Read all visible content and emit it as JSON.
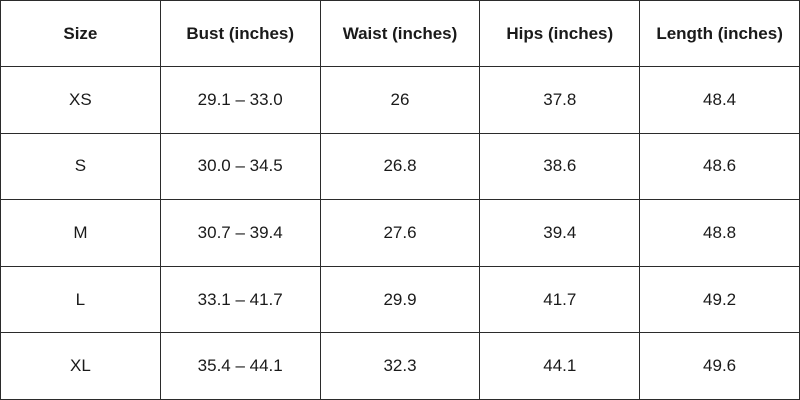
{
  "table": {
    "headers": [
      "Size",
      "Bust (inches)",
      "Waist (inches)",
      "Hips (inches)",
      "Length (inches)"
    ],
    "rows": [
      [
        "XS",
        "29.1 – 33.0",
        "26",
        "37.8",
        "48.4"
      ],
      [
        "S",
        "30.0 – 34.5",
        "26.8",
        "38.6",
        "48.6"
      ],
      [
        "M",
        "30.7 – 39.4",
        "27.6",
        "39.4",
        "48.8"
      ],
      [
        "L",
        "33.1 – 41.7",
        "29.9",
        "41.7",
        "49.2"
      ],
      [
        "XL",
        "35.4 – 44.1",
        "32.3",
        "44.1",
        "49.6"
      ]
    ]
  }
}
